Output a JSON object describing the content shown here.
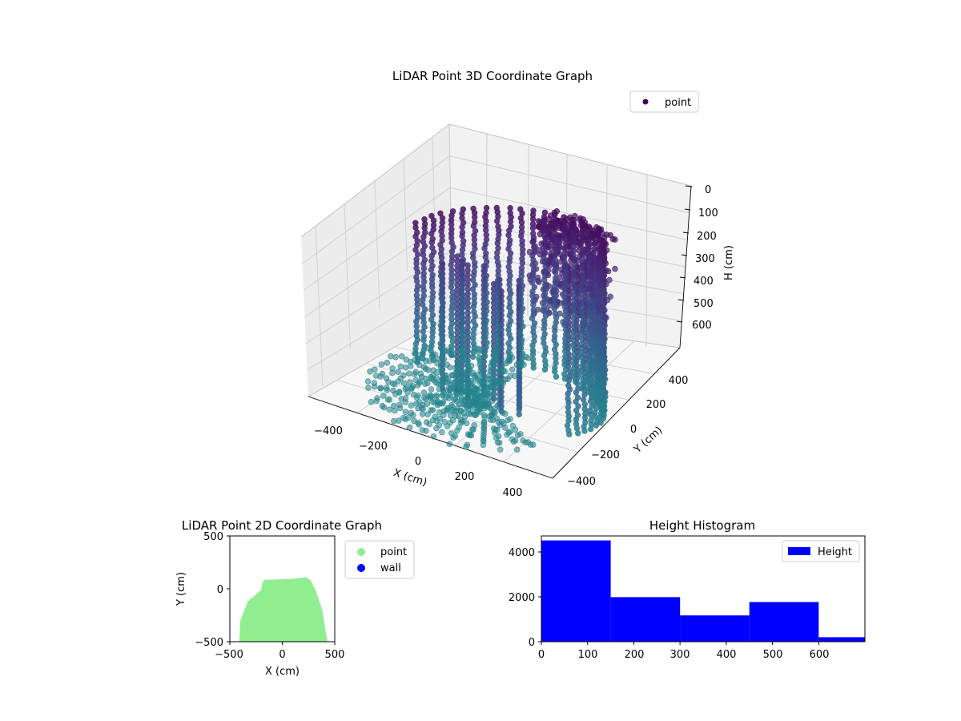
{
  "chart_data": [
    {
      "type": "scatter",
      "title": "LiDAR Point 3D Coordinate Graph",
      "xlabel": "X (cm)",
      "ylabel": "Y (cm)",
      "zlabel": "H (cm)",
      "x_ticks": [
        "−400",
        "−200",
        "0",
        "200",
        "400"
      ],
      "y_ticks": [
        "−400",
        "−200",
        "0",
        "200",
        "400"
      ],
      "z_ticks": [
        "0",
        "100",
        "200",
        "300",
        "400",
        "500",
        "600"
      ],
      "z_inverted": true,
      "legend": [
        {
          "label": "point",
          "color": "#440154"
        }
      ],
      "legend_position": "upper right",
      "colormap": "viridis",
      "series": [
        {
          "name": "point",
          "points_sample": [
            {
              "x": -400,
              "y": -200,
              "h": 60
            },
            {
              "x": -380,
              "y": -120,
              "h": 280
            },
            {
              "x": -300,
              "y": -60,
              "h": 440
            },
            {
              "x": -200,
              "y": 0,
              "h": 560
            },
            {
              "x": -100,
              "y": 60,
              "h": 600
            },
            {
              "x": 0,
              "y": 80,
              "h": 620
            },
            {
              "x": 100,
              "y": 100,
              "h": 640
            },
            {
              "x": 200,
              "y": 80,
              "h": 620
            },
            {
              "x": 300,
              "y": 0,
              "h": 560
            },
            {
              "x": 380,
              "y": -200,
              "h": 420
            },
            {
              "x": 0,
              "y": -300,
              "h": 0
            },
            {
              "x": -200,
              "y": -420,
              "h": 0
            }
          ]
        }
      ]
    },
    {
      "type": "scatter",
      "title": "LiDAR Point 2D Coordinate Graph",
      "xlabel": "X (cm)",
      "ylabel": "Y (cm)",
      "x_ticks": [
        "−500",
        "0",
        "500"
      ],
      "y_ticks": [
        "500",
        "0",
        "−500"
      ],
      "xlim": [
        -500,
        500
      ],
      "ylim": [
        -500,
        500
      ],
      "legend": [
        {
          "label": "point",
          "color": "#90ee90"
        },
        {
          "label": "wall",
          "color": "#0000ff"
        }
      ],
      "legend_position": "outside right",
      "series": [
        {
          "name": "point",
          "color": "#90ee90",
          "region_outline": [
            [
              -410,
              -510
            ],
            [
              -400,
              -300
            ],
            [
              -330,
              -120
            ],
            [
              -200,
              -10
            ],
            [
              -190,
              60
            ],
            [
              -170,
              85
            ],
            [
              0,
              90
            ],
            [
              100,
              95
            ],
            [
              230,
              110
            ],
            [
              270,
              80
            ],
            [
              320,
              -20
            ],
            [
              380,
              -200
            ],
            [
              430,
              -510
            ]
          ]
        },
        {
          "name": "wall",
          "color": "#0000ff",
          "points": []
        }
      ]
    },
    {
      "type": "bar",
      "title": "Height Histogram",
      "xlabel": "",
      "ylabel": "",
      "x_ticks": [
        "0",
        "100",
        "200",
        "300",
        "400",
        "500",
        "600"
      ],
      "y_ticks": [
        "0",
        "2000",
        "4000"
      ],
      "xlim": [
        0,
        700
      ],
      "ylim": [
        0,
        4750
      ],
      "legend": [
        {
          "label": "Height",
          "color": "#0000ff"
        }
      ],
      "legend_position": "upper right",
      "series": [
        {
          "name": "Height",
          "color": "#0000ff",
          "bins": [
            {
              "from": 0,
              "to": 150,
              "count": 4550
            },
            {
              "from": 150,
              "to": 300,
              "count": 2000
            },
            {
              "from": 300,
              "to": 450,
              "count": 1180
            },
            {
              "from": 450,
              "to": 600,
              "count": 1780
            },
            {
              "from": 600,
              "to": 750,
              "count": 200
            }
          ]
        }
      ]
    }
  ]
}
